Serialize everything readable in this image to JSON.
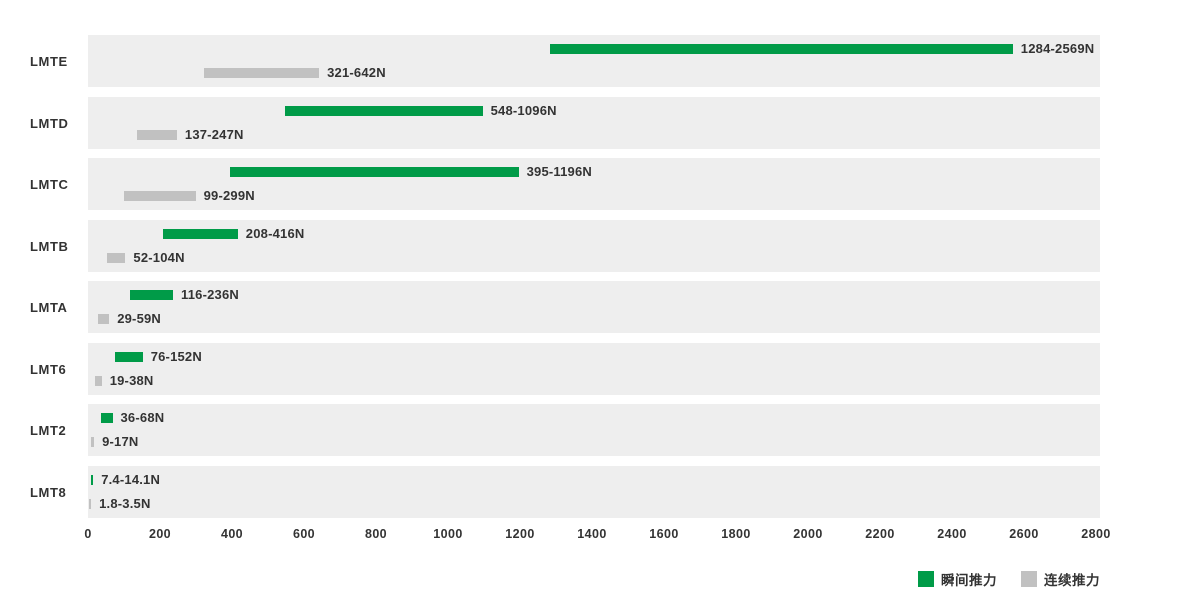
{
  "chart_data": {
    "type": "bar",
    "orientation": "horizontal-range",
    "categories": [
      "LMTE",
      "LMTD",
      "LMTC",
      "LMTB",
      "LMTA",
      "LMT6",
      "LMT2",
      "LMT8"
    ],
    "series": [
      {
        "name": "瞬间推力",
        "color": "#009b48",
        "ranges": [
          [
            1284,
            2569
          ],
          [
            548,
            1096
          ],
          [
            395,
            1196
          ],
          [
            208,
            416
          ],
          [
            116,
            236
          ],
          [
            76,
            152
          ],
          [
            36,
            68
          ],
          [
            7.4,
            14.1
          ]
        ],
        "labels": [
          "1284-2569N",
          "548-1096N",
          "395-1196N",
          "208-416N",
          "116-236N",
          "76-152N",
          "36-68N",
          "7.4-14.1N"
        ]
      },
      {
        "name": "连续推力",
        "color": "#c1c1c1",
        "ranges": [
          [
            321,
            642
          ],
          [
            137,
            247
          ],
          [
            99,
            299
          ],
          [
            52,
            104
          ],
          [
            29,
            59
          ],
          [
            19,
            38
          ],
          [
            9,
            17
          ],
          [
            1.8,
            3.5
          ]
        ],
        "labels": [
          "321-642N",
          "137-247N",
          "99-299N",
          "52-104N",
          "29-59N",
          "19-38N",
          "9-17N",
          "1.8-3.5N"
        ]
      }
    ],
    "xlim": [
      0,
      2800
    ],
    "x_ticks": [
      "0",
      "200",
      "400",
      "600",
      "800",
      "1000",
      "1200",
      "1400",
      "1600",
      "1800",
      "2000",
      "2200",
      "2400",
      "2600",
      "2800"
    ],
    "unit": "N",
    "grid": false,
    "legend_position": "bottom-right",
    "row_bg_color": "#eeeeee",
    "text_color": "#333333"
  },
  "legend": {
    "items": [
      {
        "label": "瞬间推力",
        "color": "#009b48"
      },
      {
        "label": "连续推力",
        "color": "#c1c1c1"
      }
    ]
  }
}
